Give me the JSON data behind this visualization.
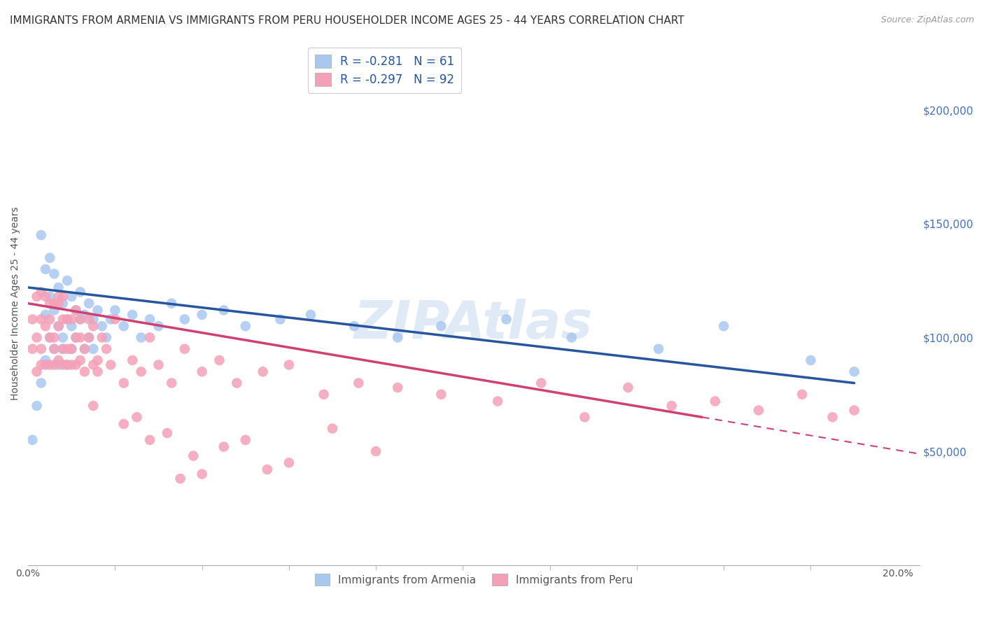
{
  "title": "IMMIGRANTS FROM ARMENIA VS IMMIGRANTS FROM PERU HOUSEHOLDER INCOME AGES 25 - 44 YEARS CORRELATION CHART",
  "source": "Source: ZipAtlas.com",
  "ylabel": "Householder Income Ages 25 - 44 years",
  "xlabel_ticks": [
    "0.0%",
    "20.0%"
  ],
  "xlabel_vals": [
    0.0,
    0.2
  ],
  "ytick_labels": [
    "$50,000",
    "$100,000",
    "$150,000",
    "$200,000"
  ],
  "ytick_vals": [
    50000,
    100000,
    150000,
    200000
  ],
  "xlim": [
    0.0,
    0.205
  ],
  "ylim": [
    0,
    230000
  ],
  "armenia_R": -0.281,
  "armenia_N": 61,
  "peru_R": -0.297,
  "peru_N": 92,
  "armenia_color": "#a8c8f0",
  "peru_color": "#f4a0b8",
  "armenia_line_color": "#2855a0",
  "peru_line_color": "#d04070",
  "legend_label_armenia": "Immigrants from Armenia",
  "legend_label_peru": "Immigrants from Peru",
  "background_color": "#ffffff",
  "grid_color": "#c8d4e8",
  "watermark": "ZIPAtlas",
  "title_fontsize": 11,
  "armenia_x": [
    0.001,
    0.002,
    0.003,
    0.003,
    0.004,
    0.004,
    0.004,
    0.005,
    0.005,
    0.005,
    0.006,
    0.006,
    0.006,
    0.007,
    0.007,
    0.007,
    0.008,
    0.008,
    0.008,
    0.009,
    0.009,
    0.009,
    0.01,
    0.01,
    0.01,
    0.011,
    0.011,
    0.012,
    0.012,
    0.013,
    0.013,
    0.014,
    0.014,
    0.015,
    0.015,
    0.016,
    0.017,
    0.018,
    0.019,
    0.02,
    0.022,
    0.024,
    0.026,
    0.028,
    0.03,
    0.033,
    0.036,
    0.04,
    0.045,
    0.05,
    0.058,
    0.065,
    0.075,
    0.085,
    0.095,
    0.11,
    0.125,
    0.145,
    0.16,
    0.18,
    0.19
  ],
  "armenia_y": [
    55000,
    70000,
    145000,
    80000,
    90000,
    110000,
    130000,
    100000,
    118000,
    135000,
    95000,
    112000,
    128000,
    105000,
    88000,
    122000,
    100000,
    115000,
    95000,
    108000,
    125000,
    88000,
    105000,
    118000,
    95000,
    112000,
    100000,
    108000,
    120000,
    95000,
    110000,
    100000,
    115000,
    108000,
    95000,
    112000,
    105000,
    100000,
    108000,
    112000,
    105000,
    110000,
    100000,
    108000,
    105000,
    115000,
    108000,
    110000,
    112000,
    105000,
    108000,
    110000,
    105000,
    100000,
    105000,
    108000,
    100000,
    95000,
    105000,
    90000,
    85000
  ],
  "peru_x": [
    0.001,
    0.001,
    0.002,
    0.002,
    0.002,
    0.003,
    0.003,
    0.003,
    0.003,
    0.004,
    0.004,
    0.004,
    0.005,
    0.005,
    0.005,
    0.005,
    0.006,
    0.006,
    0.006,
    0.006,
    0.007,
    0.007,
    0.007,
    0.007,
    0.008,
    0.008,
    0.008,
    0.008,
    0.009,
    0.009,
    0.009,
    0.01,
    0.01,
    0.01,
    0.011,
    0.011,
    0.011,
    0.012,
    0.012,
    0.012,
    0.013,
    0.013,
    0.014,
    0.014,
    0.015,
    0.015,
    0.016,
    0.016,
    0.017,
    0.018,
    0.019,
    0.02,
    0.022,
    0.024,
    0.026,
    0.028,
    0.03,
    0.033,
    0.036,
    0.04,
    0.044,
    0.048,
    0.054,
    0.06,
    0.068,
    0.076,
    0.085,
    0.095,
    0.108,
    0.118,
    0.128,
    0.138,
    0.148,
    0.158,
    0.168,
    0.178,
    0.185,
    0.19,
    0.04,
    0.05,
    0.06,
    0.08,
    0.055,
    0.07,
    0.035,
    0.025,
    0.045,
    0.015,
    0.038,
    0.028,
    0.022,
    0.032
  ],
  "peru_y": [
    108000,
    95000,
    118000,
    100000,
    85000,
    108000,
    95000,
    120000,
    88000,
    105000,
    118000,
    88000,
    100000,
    115000,
    88000,
    108000,
    95000,
    115000,
    88000,
    100000,
    115000,
    90000,
    105000,
    118000,
    95000,
    108000,
    88000,
    118000,
    95000,
    108000,
    88000,
    95000,
    108000,
    88000,
    100000,
    88000,
    112000,
    90000,
    100000,
    108000,
    95000,
    85000,
    108000,
    100000,
    88000,
    105000,
    90000,
    85000,
    100000,
    95000,
    88000,
    108000,
    80000,
    90000,
    85000,
    100000,
    88000,
    80000,
    95000,
    85000,
    90000,
    80000,
    85000,
    88000,
    75000,
    80000,
    78000,
    75000,
    72000,
    80000,
    65000,
    78000,
    70000,
    72000,
    68000,
    75000,
    65000,
    68000,
    40000,
    55000,
    45000,
    50000,
    42000,
    60000,
    38000,
    65000,
    52000,
    70000,
    48000,
    55000,
    62000,
    58000
  ]
}
